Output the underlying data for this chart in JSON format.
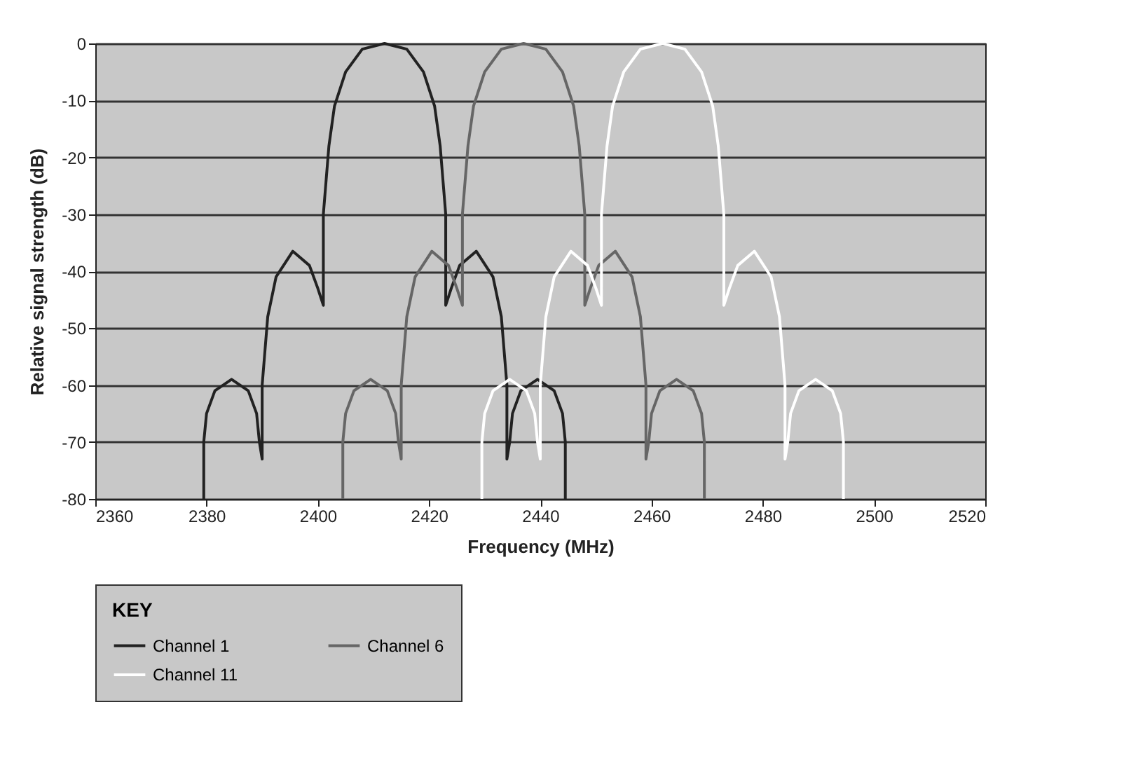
{
  "chart_data": {
    "type": "line",
    "xlabel": "Frequency (MHz)",
    "ylabel": "Relative signal strength (dB)",
    "legend_title": "KEY",
    "xlim": [
      2360,
      2520
    ],
    "xticks": [
      2360,
      2380,
      2400,
      2420,
      2440,
      2460,
      2480,
      2500,
      2520
    ],
    "ylim": [
      -80,
      0
    ],
    "yticks": [
      -80,
      -70,
      -60,
      -50,
      -40,
      -30,
      -20,
      -10,
      0
    ],
    "grid": "y",
    "legend": "bottom",
    "series": [
      {
        "name": "Channel 1",
        "color": "#222222",
        "x": [
          2379.5,
          2379.5,
          2380,
          2381.5,
          2384.5,
          2387.5,
          2389,
          2389.5,
          2390,
          2390,
          2391,
          2392.5,
          2395.5,
          2398.5,
          2400,
          2401,
          2401,
          2402,
          2403,
          2405,
          2408,
          2412,
          2416,
          2419,
          2421,
          2422,
          2423,
          2423,
          2424,
          2425.5,
          2428.5,
          2431.5,
          2433,
          2434,
          2434,
          2434.5,
          2435,
          2436.5,
          2439.5,
          2442.5,
          2444,
          2444.5,
          2444.5
        ],
        "values": [
          -80,
          -70,
          -65,
          -61,
          -59,
          -61,
          -65,
          -70,
          -73,
          -60,
          -48,
          -41,
          -36.5,
          -39,
          -43,
          -46,
          -30,
          -18,
          -11,
          -5,
          -1,
          0,
          -1,
          -5,
          -11,
          -18,
          -30,
          -46,
          -43,
          -39,
          -36.5,
          -41,
          -48,
          -60,
          -73,
          -70,
          -65,
          -61,
          -59,
          -61,
          -65,
          -70,
          -80
        ]
      },
      {
        "name": "Channel 6",
        "color": "#666666",
        "x": [
          2404.5,
          2404.5,
          2405,
          2406.5,
          2409.5,
          2412.5,
          2414,
          2414.5,
          2415,
          2415,
          2416,
          2417.5,
          2420.5,
          2423.5,
          2425,
          2426,
          2426,
          2427,
          2428,
          2430,
          2433,
          2437,
          2441,
          2444,
          2446,
          2447,
          2448,
          2448,
          2449,
          2450.5,
          2453.5,
          2456.5,
          2458,
          2459,
          2459,
          2459.5,
          2460,
          2461.5,
          2464.5,
          2467.5,
          2469,
          2469.5,
          2469.5
        ],
        "values": [
          -80,
          -70,
          -65,
          -61,
          -59,
          -61,
          -65,
          -70,
          -73,
          -60,
          -48,
          -41,
          -36.5,
          -39,
          -43,
          -46,
          -30,
          -18,
          -11,
          -5,
          -1,
          0,
          -1,
          -5,
          -11,
          -18,
          -30,
          -46,
          -43,
          -39,
          -36.5,
          -41,
          -48,
          -60,
          -73,
          -70,
          -65,
          -61,
          -59,
          -61,
          -65,
          -70,
          -80
        ]
      },
      {
        "name": "Channel 11",
        "color": "#ffffff",
        "x": [
          2429.5,
          2429.5,
          2430,
          2431.5,
          2434.5,
          2437.5,
          2439,
          2439.5,
          2440,
          2440,
          2441,
          2442.5,
          2445.5,
          2448.5,
          2450,
          2451,
          2451,
          2452,
          2453,
          2455,
          2458,
          2462,
          2466,
          2469,
          2471,
          2472,
          2473,
          2473,
          2474,
          2475.5,
          2478.5,
          2481.5,
          2483,
          2484,
          2484,
          2484.5,
          2485,
          2486.5,
          2489.5,
          2492.5,
          2494,
          2494.5,
          2494.5
        ],
        "values": [
          -80,
          -70,
          -65,
          -61,
          -59,
          -61,
          -65,
          -70,
          -73,
          -60,
          -48,
          -41,
          -36.5,
          -39,
          -43,
          -46,
          -30,
          -18,
          -11,
          -5,
          -1,
          0,
          -1,
          -5,
          -11,
          -18,
          -30,
          -46,
          -43,
          -39,
          -36.5,
          -41,
          -48,
          -60,
          -73,
          -70,
          -65,
          -61,
          -59,
          -61,
          -65,
          -70,
          -80
        ]
      }
    ]
  }
}
